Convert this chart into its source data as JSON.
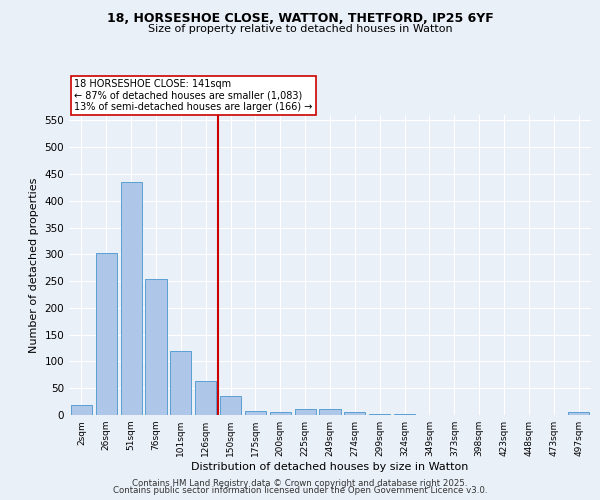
{
  "title1": "18, HORSESHOE CLOSE, WATTON, THETFORD, IP25 6YF",
  "title2": "Size of property relative to detached houses in Watton",
  "xlabel": "Distribution of detached houses by size in Watton",
  "ylabel": "Number of detached properties",
  "bar_labels": [
    "2sqm",
    "26sqm",
    "51sqm",
    "76sqm",
    "101sqm",
    "126sqm",
    "150sqm",
    "175sqm",
    "200sqm",
    "225sqm",
    "249sqm",
    "274sqm",
    "299sqm",
    "324sqm",
    "349sqm",
    "373sqm",
    "398sqm",
    "423sqm",
    "448sqm",
    "473sqm",
    "497sqm"
  ],
  "bar_values": [
    18,
    302,
    435,
    254,
    119,
    64,
    35,
    7,
    5,
    11,
    11,
    5,
    2,
    1,
    0,
    0,
    0,
    0,
    0,
    0,
    5
  ],
  "bar_color": "#aec6e8",
  "bar_edge_color": "#5a9fd4",
  "vline_index": 6,
  "vline_color": "#cc0000",
  "annotation_text": "18 HORSESHOE CLOSE: 141sqm\n← 87% of detached houses are smaller (1,083)\n13% of semi-detached houses are larger (166) →",
  "annotation_box_color": "#ffffff",
  "annotation_box_edge": "#cc0000",
  "ylim": [
    0,
    560
  ],
  "yticks": [
    0,
    50,
    100,
    150,
    200,
    250,
    300,
    350,
    400,
    450,
    500,
    550
  ],
  "bg_color": "#eaf0f8",
  "grid_color": "#ffffff",
  "footer1": "Contains HM Land Registry data © Crown copyright and database right 2025.",
  "footer2": "Contains public sector information licensed under the Open Government Licence v3.0."
}
